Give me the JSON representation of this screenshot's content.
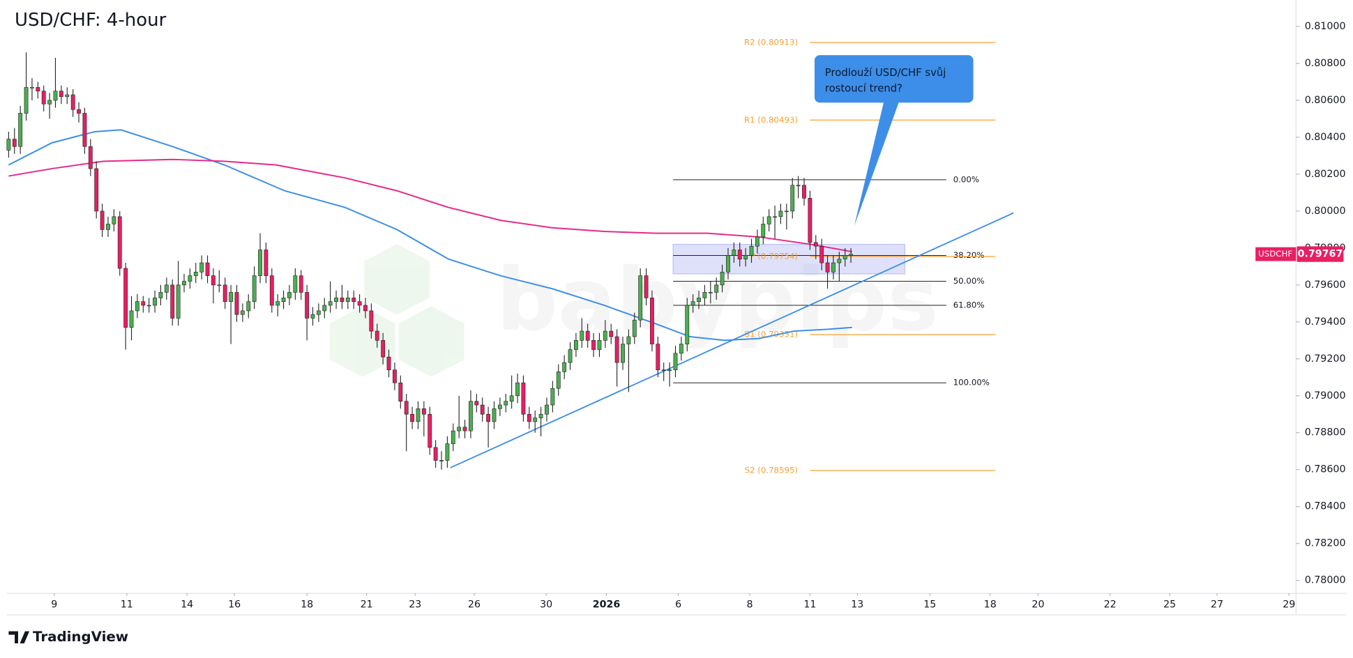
{
  "chart_data": {
    "type": "candlestick",
    "title": "USD/CHF: 4-hour",
    "xlim": [
      0,
      220.1
    ],
    "ylim": [
      0.7793,
      0.8112
    ],
    "yticks": [
      {
        "value": 0.81,
        "label": "0.81000"
      },
      {
        "value": 0.808,
        "label": "0.80800"
      },
      {
        "value": 0.806,
        "label": "0.80600"
      },
      {
        "value": 0.804,
        "label": "0.80400"
      },
      {
        "value": 0.802,
        "label": "0.80200"
      },
      {
        "value": 0.8,
        "label": "0.80000"
      },
      {
        "value": 0.798,
        "label": "0.79800"
      },
      {
        "value": 0.796,
        "label": "0.79600"
      },
      {
        "value": 0.794,
        "label": "0.79400"
      },
      {
        "value": 0.792,
        "label": "0.79200"
      },
      {
        "value": 0.79,
        "label": "0.79000"
      },
      {
        "value": 0.788,
        "label": "0.78800"
      },
      {
        "value": 0.786,
        "label": "0.78600"
      },
      {
        "value": 0.784,
        "label": "0.78400"
      },
      {
        "value": 0.782,
        "label": "0.78200"
      },
      {
        "value": 0.78,
        "label": "0.78000"
      }
    ],
    "xticks": [
      {
        "value": 7.8,
        "label": "9"
      },
      {
        "value": 20.2,
        "label": "11"
      },
      {
        "value": 30.5,
        "label": "14"
      },
      {
        "value": 38.6,
        "label": "16"
      },
      {
        "value": 51,
        "label": "18"
      },
      {
        "value": 61.2,
        "label": "21"
      },
      {
        "value": 69.5,
        "label": "23"
      },
      {
        "value": 79.6,
        "label": "26"
      },
      {
        "value": 91.9,
        "label": "30"
      },
      {
        "value": 102.2,
        "label": "2026"
      },
      {
        "value": 114.5,
        "label": "6"
      },
      {
        "value": 126.7,
        "label": "8"
      },
      {
        "value": 137,
        "label": "11"
      },
      {
        "value": 145.1,
        "label": "13"
      },
      {
        "value": 157.5,
        "label": "15"
      },
      {
        "value": 167.8,
        "label": "18"
      },
      {
        "value": 176,
        "label": "20"
      },
      {
        "value": 188.3,
        "label": "22"
      },
      {
        "value": 198.5,
        "label": "25"
      },
      {
        "value": 206.6,
        "label": "27"
      },
      {
        "value": 218.9,
        "label": "29"
      }
    ],
    "up_color": "#4caf50",
    "down_color": "#e91e63",
    "candles": [
      [
        0.8033,
        0.8043,
        0.8029,
        0.8039
      ],
      [
        0.8039,
        0.8045,
        0.8031,
        0.8035
      ],
      [
        0.8035,
        0.8057,
        0.8031,
        0.8053
      ],
      [
        0.8053,
        0.8086,
        0.8049,
        0.8067
      ],
      [
        0.8067,
        0.8072,
        0.806,
        0.8067
      ],
      [
        0.8067,
        0.807,
        0.8061,
        0.8065
      ],
      [
        0.8065,
        0.8068,
        0.8054,
        0.8058
      ],
      [
        0.8058,
        0.8064,
        0.805,
        0.806
      ],
      [
        0.806,
        0.8083,
        0.8056,
        0.8065
      ],
      [
        0.8065,
        0.8068,
        0.8058,
        0.8062
      ],
      [
        0.8062,
        0.8067,
        0.8058,
        0.8063
      ],
      [
        0.8063,
        0.8066,
        0.8051,
        0.8055
      ],
      [
        0.8055,
        0.8059,
        0.8048,
        0.8053
      ],
      [
        0.8053,
        0.8056,
        0.8031,
        0.8035
      ],
      [
        0.8035,
        0.8039,
        0.8019,
        0.8023
      ],
      [
        0.8023,
        0.8027,
        0.7996,
        0.8
      ],
      [
        0.8,
        0.8004,
        0.7986,
        0.799
      ],
      [
        0.799,
        0.7997,
        0.7986,
        0.7993
      ],
      [
        0.7993,
        0.8001,
        0.7989,
        0.7997
      ],
      [
        0.7997,
        0.8,
        0.7965,
        0.7969
      ],
      [
        0.7969,
        0.7972,
        0.7925,
        0.7937
      ],
      [
        0.7937,
        0.7954,
        0.793,
        0.7946
      ],
      [
        0.7946,
        0.7955,
        0.7942,
        0.7951
      ],
      [
        0.7951,
        0.7954,
        0.7945,
        0.7949
      ],
      [
        0.7949,
        0.7953,
        0.7945,
        0.7949
      ],
      [
        0.7949,
        0.7957,
        0.7945,
        0.7953
      ],
      [
        0.7953,
        0.796,
        0.7949,
        0.7956
      ],
      [
        0.7956,
        0.7964,
        0.7952,
        0.796
      ],
      [
        0.796,
        0.7963,
        0.7938,
        0.7942
      ],
      [
        0.7942,
        0.7973,
        0.7938,
        0.796
      ],
      [
        0.796,
        0.7966,
        0.7956,
        0.7962
      ],
      [
        0.7962,
        0.7969,
        0.7958,
        0.7965
      ],
      [
        0.7965,
        0.7972,
        0.7961,
        0.7967
      ],
      [
        0.7967,
        0.7976,
        0.7963,
        0.7972
      ],
      [
        0.7972,
        0.7976,
        0.7961,
        0.7965
      ],
      [
        0.7965,
        0.7969,
        0.795,
        0.796
      ],
      [
        0.796,
        0.7968,
        0.7956,
        0.796
      ],
      [
        0.796,
        0.7964,
        0.7947,
        0.7951
      ],
      [
        0.7951,
        0.796,
        0.7928,
        0.7956
      ],
      [
        0.7956,
        0.796,
        0.794,
        0.7944
      ],
      [
        0.7944,
        0.795,
        0.794,
        0.7946
      ],
      [
        0.7946,
        0.7955,
        0.7942,
        0.7951
      ],
      [
        0.7951,
        0.797,
        0.7947,
        0.7965
      ],
      [
        0.7965,
        0.7988,
        0.7961,
        0.7979
      ],
      [
        0.7979,
        0.7983,
        0.7961,
        0.7965
      ],
      [
        0.7965,
        0.7969,
        0.7945,
        0.7949
      ],
      [
        0.7949,
        0.7955,
        0.7943,
        0.7951
      ],
      [
        0.7951,
        0.7957,
        0.7947,
        0.7953
      ],
      [
        0.7953,
        0.796,
        0.7949,
        0.7956
      ],
      [
        0.7956,
        0.7969,
        0.7952,
        0.7965
      ],
      [
        0.7965,
        0.7968,
        0.7952,
        0.7956
      ],
      [
        0.7956,
        0.796,
        0.793,
        0.7942
      ],
      [
        0.7942,
        0.7948,
        0.7938,
        0.7944
      ],
      [
        0.7944,
        0.795,
        0.794,
        0.7946
      ],
      [
        0.7946,
        0.7953,
        0.7942,
        0.7949
      ],
      [
        0.7949,
        0.7962,
        0.7945,
        0.7951
      ],
      [
        0.7951,
        0.7957,
        0.7947,
        0.7953
      ],
      [
        0.7953,
        0.796,
        0.7947,
        0.7951
      ],
      [
        0.7951,
        0.7957,
        0.7947,
        0.7953
      ],
      [
        0.7953,
        0.7957,
        0.7947,
        0.7951
      ],
      [
        0.7951,
        0.7955,
        0.7945,
        0.7949
      ],
      [
        0.7949,
        0.7953,
        0.7942,
        0.7946
      ],
      [
        0.7946,
        0.795,
        0.7931,
        0.7935
      ],
      [
        0.7935,
        0.7939,
        0.7926,
        0.793
      ],
      [
        0.793,
        0.7934,
        0.7917,
        0.7921
      ],
      [
        0.7921,
        0.7925,
        0.791,
        0.7914
      ],
      [
        0.7914,
        0.7918,
        0.7903,
        0.7907
      ],
      [
        0.7907,
        0.7911,
        0.7893,
        0.7897
      ],
      [
        0.7897,
        0.7901,
        0.787,
        0.789
      ],
      [
        0.789,
        0.7894,
        0.7882,
        0.7886
      ],
      [
        0.7886,
        0.7897,
        0.7882,
        0.7893
      ],
      [
        0.7893,
        0.7897,
        0.7878,
        0.789
      ],
      [
        0.789,
        0.7894,
        0.7868,
        0.7872
      ],
      [
        0.7872,
        0.7876,
        0.7861,
        0.7865
      ],
      [
        0.7865,
        0.787,
        0.786,
        0.7865
      ],
      [
        0.7865,
        0.7878,
        0.7861,
        0.7874
      ],
      [
        0.7874,
        0.7885,
        0.787,
        0.7881
      ],
      [
        0.7881,
        0.79,
        0.7877,
        0.7883
      ],
      [
        0.7883,
        0.7887,
        0.7877,
        0.7881
      ],
      [
        0.7881,
        0.7903,
        0.7877,
        0.7897
      ],
      [
        0.7897,
        0.7901,
        0.7891,
        0.7895
      ],
      [
        0.7895,
        0.7899,
        0.7886,
        0.789
      ],
      [
        0.789,
        0.7894,
        0.7872,
        0.7886
      ],
      [
        0.7886,
        0.7897,
        0.7882,
        0.7893
      ],
      [
        0.7893,
        0.7899,
        0.7889,
        0.7895
      ],
      [
        0.7895,
        0.7901,
        0.7891,
        0.7897
      ],
      [
        0.7897,
        0.7911,
        0.7893,
        0.79
      ],
      [
        0.79,
        0.7912,
        0.7896,
        0.7907
      ],
      [
        0.7907,
        0.7911,
        0.7886,
        0.789
      ],
      [
        0.789,
        0.7894,
        0.7882,
        0.7886
      ],
      [
        0.7886,
        0.7892,
        0.788,
        0.7888
      ],
      [
        0.7888,
        0.7894,
        0.7878,
        0.789
      ],
      [
        0.789,
        0.7899,
        0.7886,
        0.7895
      ],
      [
        0.7895,
        0.7908,
        0.7891,
        0.7904
      ],
      [
        0.7904,
        0.7917,
        0.79,
        0.7913
      ],
      [
        0.7913,
        0.7922,
        0.7909,
        0.7918
      ],
      [
        0.7918,
        0.7929,
        0.7914,
        0.7925
      ],
      [
        0.7925,
        0.7934,
        0.7921,
        0.793
      ],
      [
        0.793,
        0.7942,
        0.7926,
        0.7935
      ],
      [
        0.7935,
        0.7939,
        0.7926,
        0.793
      ],
      [
        0.793,
        0.7934,
        0.7921,
        0.7925
      ],
      [
        0.7925,
        0.7934,
        0.7921,
        0.793
      ],
      [
        0.793,
        0.7941,
        0.7926,
        0.7935
      ],
      [
        0.7935,
        0.7939,
        0.7928,
        0.7932
      ],
      [
        0.7932,
        0.7936,
        0.7905,
        0.7918
      ],
      [
        0.7918,
        0.7932,
        0.7914,
        0.7928
      ],
      [
        0.7928,
        0.7936,
        0.7902,
        0.7932
      ],
      [
        0.7932,
        0.7945,
        0.7928,
        0.7941
      ],
      [
        0.7941,
        0.7969,
        0.7937,
        0.7965
      ],
      [
        0.7965,
        0.7969,
        0.7949,
        0.7953
      ],
      [
        0.7953,
        0.7957,
        0.7924,
        0.7928
      ],
      [
        0.7928,
        0.7932,
        0.791,
        0.7914
      ],
      [
        0.7914,
        0.7918,
        0.7908,
        0.7914
      ],
      [
        0.7914,
        0.7918,
        0.7905,
        0.7914
      ],
      [
        0.7914,
        0.7927,
        0.791,
        0.7923
      ],
      [
        0.7923,
        0.7932,
        0.7919,
        0.7928
      ],
      [
        0.7928,
        0.7953,
        0.7924,
        0.7949
      ],
      [
        0.7949,
        0.7955,
        0.7945,
        0.7951
      ],
      [
        0.7951,
        0.7957,
        0.7947,
        0.7953
      ],
      [
        0.7953,
        0.796,
        0.7949,
        0.7956
      ],
      [
        0.7956,
        0.7962,
        0.795,
        0.7956
      ],
      [
        0.7956,
        0.7964,
        0.7952,
        0.796
      ],
      [
        0.796,
        0.7971,
        0.7956,
        0.7967
      ],
      [
        0.7967,
        0.798,
        0.7963,
        0.7976
      ],
      [
        0.7976,
        0.7983,
        0.7972,
        0.7979
      ],
      [
        0.7979,
        0.7983,
        0.797,
        0.7974
      ],
      [
        0.7974,
        0.798,
        0.797,
        0.7976
      ],
      [
        0.7976,
        0.7985,
        0.7972,
        0.7981
      ],
      [
        0.7981,
        0.799,
        0.7977,
        0.7986
      ],
      [
        0.7986,
        0.7997,
        0.7982,
        0.7993
      ],
      [
        0.7993,
        0.8001,
        0.7989,
        0.7997
      ],
      [
        0.7997,
        0.8003,
        0.7985,
        0.7997
      ],
      [
        0.7997,
        0.8004,
        0.7993,
        0.8
      ],
      [
        0.8,
        0.8004,
        0.799,
        0.8
      ],
      [
        0.8,
        0.8018,
        0.7996,
        0.8014
      ],
      [
        0.8014,
        0.8019,
        0.8007,
        0.8014
      ],
      [
        0.8014,
        0.8018,
        0.8003,
        0.8007
      ],
      [
        0.8007,
        0.8011,
        0.7979,
        0.7983
      ],
      [
        0.7983,
        0.7987,
        0.7974,
        0.7981
      ],
      [
        0.7981,
        0.7985,
        0.7968,
        0.7972
      ],
      [
        0.7972,
        0.7976,
        0.7958,
        0.7967
      ],
      [
        0.7967,
        0.7976,
        0.7963,
        0.7972
      ],
      [
        0.7972,
        0.7978,
        0.7962,
        0.7974
      ],
      [
        0.7974,
        0.798,
        0.797,
        0.7976
      ],
      [
        0.7976,
        0.798,
        0.7972,
        0.79767
      ]
    ],
    "lines": [
      {
        "color": "#3d8ee8",
        "x": [
          0,
          7.4,
          14.7,
          19.2,
          28,
          36.9,
          47.2,
          57.5,
          66.4,
          75.2,
          84.1,
          92.9,
          101.8,
          110.6,
          116.5,
          122.4,
          128.3,
          134.2,
          140.1,
          144.2
        ],
        "values": [
          0.8025,
          0.8037,
          0.8043,
          0.8044,
          0.8035,
          0.8025,
          0.8011,
          0.8002,
          0.799,
          0.7974,
          0.7965,
          0.7958,
          0.7949,
          0.7939,
          0.7932,
          0.793,
          0.7931,
          0.7935,
          0.7936,
          0.7937
        ]
      },
      {
        "color": "#e6288c",
        "x": [
          0,
          7.4,
          16.2,
          28,
          36.9,
          45.7,
          57.5,
          66.4,
          75.2,
          84.1,
          92.9,
          101.8,
          110.6,
          119.5,
          128.3,
          137.2,
          144.2
        ],
        "values": [
          0.8019,
          0.8023,
          0.8027,
          0.8028,
          0.8027,
          0.8025,
          0.8018,
          0.8011,
          0.8002,
          0.7995,
          0.7991,
          0.7989,
          0.7988,
          0.7988,
          0.7986,
          0.7982,
          0.7978
        ]
      }
    ],
    "trendline": {
      "color": "#3d8ee8",
      "x": [
        75.5,
        171.8
      ],
      "y": [
        0.7861,
        0.7999
      ]
    },
    "zone": {
      "color": "#8c93f0",
      "x": [
        113.6,
        153.2
      ],
      "y": [
        0.7966,
        0.7982
      ]
    },
    "fib_x": [
      113.6,
      160.3
    ],
    "fib_levels": [
      {
        "label": "0.00%",
        "value": 0.8017
      },
      {
        "label": "38.20%",
        "value": 0.7976
      },
      {
        "label": "50.00%",
        "value": 0.7962
      },
      {
        "label": "61.80%",
        "value": 0.7949
      },
      {
        "label": "100.00%",
        "value": 0.7907
      }
    ],
    "pivot_color": "#f5a030",
    "pivot_x": [
      137,
      168.7
    ],
    "pivots": [
      {
        "label": "R2 (0.80913)",
        "value": 0.80913
      },
      {
        "label": "R1 (0.80493)",
        "value": 0.80493
      },
      {
        "label": "P (0.79754)",
        "value": 0.79754
      },
      {
        "label": "S1 (0.79331)",
        "value": 0.79331
      },
      {
        "label": "S2 (0.78595)",
        "value": 0.78595
      }
    ],
    "last_price": {
      "symbol": "USDCHF",
      "value": 0.79767,
      "color": "#e91e63"
    },
    "callout": {
      "lines": [
        "Prodlouží USD/CHF svůj",
        "rostoucí trend?"
      ],
      "color": "#3d8ee8"
    },
    "watermark": "babypips",
    "brand": "TradingView"
  }
}
